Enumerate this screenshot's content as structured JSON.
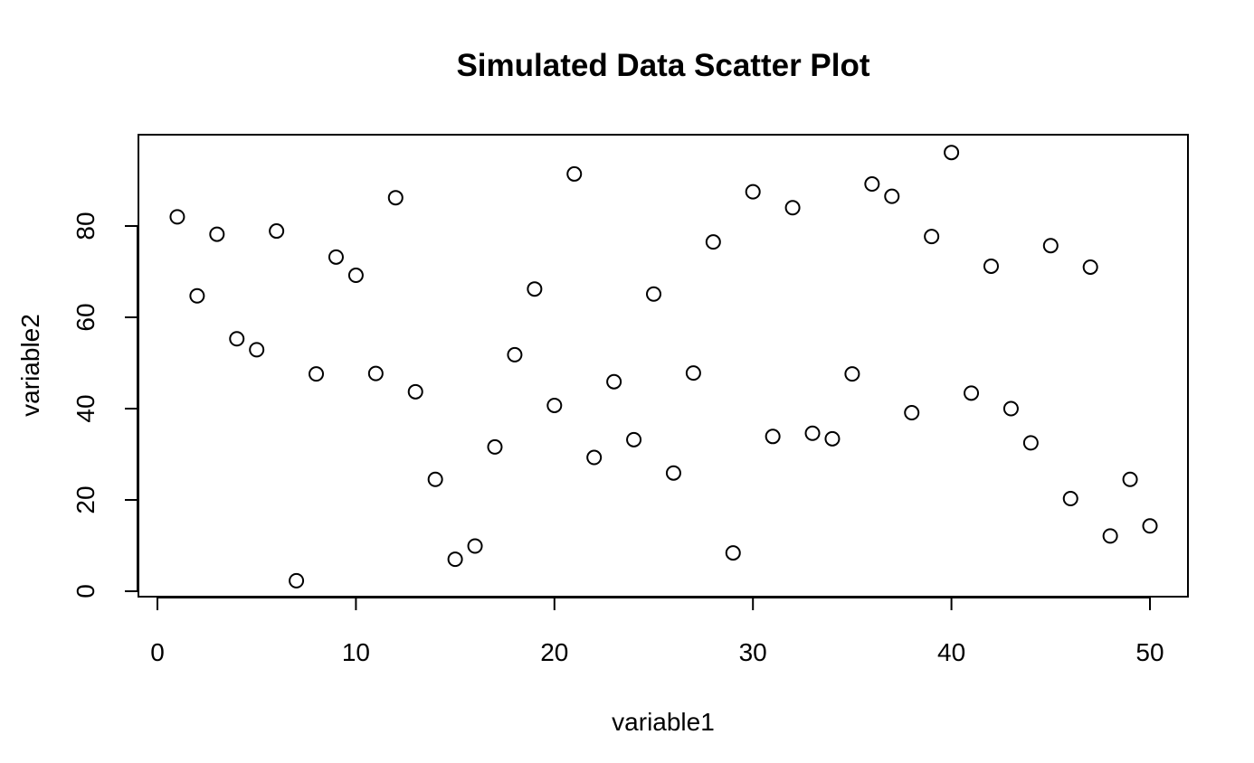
{
  "chart_data": {
    "type": "scatter",
    "title": "Simulated Data Scatter Plot",
    "xlabel": "variable1",
    "ylabel": "variable2",
    "xlim": [
      0,
      50
    ],
    "ylim": [
      0,
      100
    ],
    "xticks": [
      0,
      10,
      20,
      30,
      40,
      50
    ],
    "yticks": [
      0,
      20,
      40,
      60,
      80
    ],
    "grid": false,
    "point_style": "open-circle",
    "point_color": "#000000",
    "x": [
      1,
      2,
      3,
      4,
      5,
      6,
      7,
      8,
      9,
      10,
      11,
      12,
      13,
      14,
      15,
      16,
      17,
      18,
      19,
      20,
      21,
      22,
      23,
      24,
      25,
      26,
      27,
      28,
      29,
      30,
      31,
      32,
      33,
      34,
      35,
      36,
      37,
      38,
      39,
      40,
      41,
      42,
      43,
      44,
      45,
      46,
      47,
      48,
      49,
      50
    ],
    "y": [
      82.0,
      64.7,
      78.2,
      55.3,
      52.9,
      78.9,
      2.3,
      47.6,
      73.2,
      69.2,
      47.7,
      86.2,
      43.7,
      24.5,
      7.0,
      9.9,
      31.6,
      51.8,
      66.2,
      40.7,
      91.4,
      29.3,
      45.9,
      33.2,
      65.1,
      25.9,
      47.8,
      76.5,
      8.4,
      87.5,
      33.9,
      84.0,
      34.6,
      33.4,
      47.6,
      89.2,
      86.5,
      39.1,
      77.7,
      96.1,
      43.4,
      71.2,
      40.0,
      32.5,
      75.7,
      20.3,
      71.0,
      12.1,
      24.5,
      14.3
    ]
  }
}
